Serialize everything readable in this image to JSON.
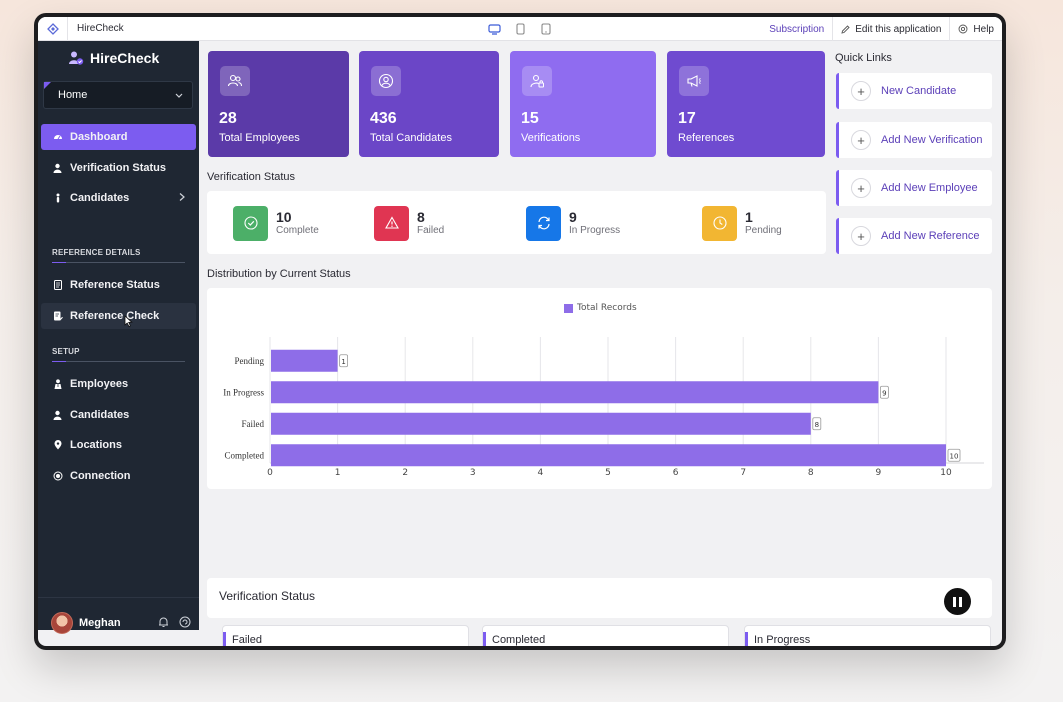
{
  "topbar": {
    "app_name": "HireCheck",
    "subscription": "Subscription",
    "edit_app": "Edit this application",
    "help": "Help"
  },
  "sidebar": {
    "brand": "HireCheck",
    "home_select": "Home",
    "items": [
      {
        "label": "Dashboard",
        "icon": "dashboard-icon"
      },
      {
        "label": "Verification Status",
        "icon": "user-check-icon"
      },
      {
        "label": "Candidates",
        "icon": "person-icon"
      }
    ],
    "section_reference": "REFERENCE DETAILS",
    "reference_items": [
      {
        "label": "Reference Status",
        "icon": "document-icon"
      },
      {
        "label": "Reference Check",
        "icon": "document-check-icon"
      }
    ],
    "section_setup": "SETUP",
    "setup_items": [
      {
        "label": "Employees",
        "icon": "employee-icon"
      },
      {
        "label": "Candidates",
        "icon": "person-icon"
      },
      {
        "label": "Locations",
        "icon": "location-icon"
      },
      {
        "label": "Connection",
        "icon": "connection-icon"
      }
    ],
    "user_name": "Meghan"
  },
  "stats": [
    {
      "value": "28",
      "label": "Total Employees",
      "icon": "employees-icon",
      "color": "#5b3aa8"
    },
    {
      "value": "436",
      "label": "Total Candidates",
      "icon": "candidate-icon",
      "color": "#6b46c7"
    },
    {
      "value": "15",
      "label": "Verifications",
      "icon": "verify-icon",
      "color": "#8f6cf0"
    },
    {
      "value": "17",
      "label": "References",
      "icon": "megaphone-icon",
      "color": "#6f4bd0"
    }
  ],
  "verification_status": {
    "title": "Verification Status",
    "items": [
      {
        "value": "10",
        "label": "Complete",
        "icon": "check-circle-icon",
        "color": "#4caf68"
      },
      {
        "value": "8",
        "label": "Failed",
        "icon": "warning-icon",
        "color": "#e03552"
      },
      {
        "value": "9",
        "label": "In Progress",
        "icon": "refresh-icon",
        "color": "#1677e8"
      },
      {
        "value": "1",
        "label": "Pending",
        "icon": "clock-icon",
        "color": "#f2b632"
      }
    ]
  },
  "quick_links": {
    "title": "Quick Links",
    "items": [
      "New Candidate",
      "Add New Verification",
      "Add New Employee",
      "Add New Reference"
    ]
  },
  "distribution": {
    "title": "Distribution by Current Status"
  },
  "chart_data": {
    "type": "bar",
    "orientation": "horizontal",
    "categories": [
      "Pending",
      "In Progress",
      "Failed",
      "Completed"
    ],
    "series": [
      {
        "name": "Total Records",
        "values": [
          1,
          9,
          8,
          10
        ]
      }
    ],
    "xlim": [
      0,
      10
    ],
    "xticks": [
      "0",
      "1",
      "2",
      "3",
      "4",
      "5",
      "6",
      "7",
      "8",
      "9",
      "10"
    ],
    "grid": true,
    "legend_position": "top-center",
    "bar_color": "#8e6de8"
  },
  "bottom": {
    "title": "Verification Status",
    "cards": [
      "Failed",
      "Completed",
      "In Progress"
    ]
  }
}
